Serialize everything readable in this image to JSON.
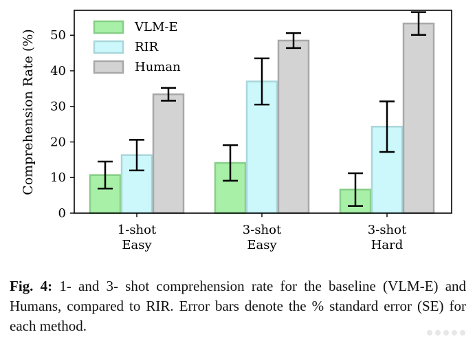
{
  "chart_data": {
    "type": "bar",
    "ylabel": "Comprehension Rate (%)",
    "xlabel": "",
    "ylim": [
      0,
      57
    ],
    "yticks": [
      0,
      10,
      20,
      30,
      40,
      50
    ],
    "categories": [
      [
        "1-shot",
        "Easy"
      ],
      [
        "3-shot",
        "Easy"
      ],
      [
        "3-shot",
        "Hard"
      ]
    ],
    "series": [
      {
        "name": "VLM-E",
        "color": "#a8efa8",
        "edge": "#86cf86",
        "values": [
          10.7,
          14.1,
          6.6
        ],
        "errors": [
          3.8,
          5.0,
          4.6
        ]
      },
      {
        "name": "RIR",
        "color": "#ccf8fb",
        "edge": "#a9d6da",
        "values": [
          16.3,
          37.0,
          24.3
        ],
        "errors": [
          4.3,
          6.5,
          7.1
        ]
      },
      {
        "name": "Human",
        "color": "#d3d3d3",
        "edge": "#a8a8a8",
        "values": [
          33.4,
          48.5,
          53.3
        ],
        "errors": [
          1.8,
          2.1,
          3.2
        ]
      }
    ],
    "legend": "top-left",
    "grid": false
  },
  "caption": {
    "label": "Fig. 4:",
    "text": "1- and 3- shot comprehension rate for the baseline (VLM-E) and Humans, compared to RIR. Error bars denote the % standard error (SE) for each method."
  }
}
